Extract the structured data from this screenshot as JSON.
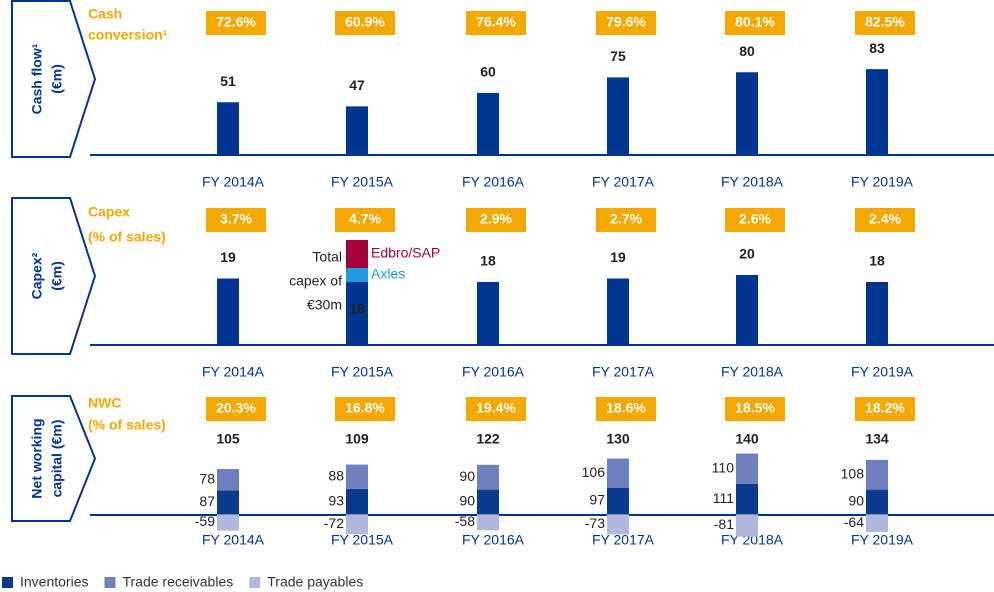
{
  "chart_data": [
    {
      "type": "bar",
      "side_label": [
        "Cash flow¹",
        "(€m)"
      ],
      "ratio_title": [
        "Cash",
        "conversion¹"
      ],
      "ratio_values": [
        72.6,
        60.9,
        76.4,
        79.6,
        80.1,
        82.5
      ],
      "ratio_labels": [
        "72.6%",
        "60.9%",
        "76.4%",
        "79.6%",
        "80.1%",
        "82.5%"
      ],
      "categories": [
        "FY 2014A",
        "FY 2015A",
        "FY 2016A",
        "FY 2017A",
        "FY 2018A",
        "FY 2019A"
      ],
      "values": [
        51,
        47,
        60,
        75,
        80,
        83
      ],
      "color": "#003591",
      "ylim": [
        0,
        145
      ]
    },
    {
      "type": "bar",
      "side_label": [
        "Capex²",
        "(€m)"
      ],
      "ratio_title": [
        "Capex",
        "(% of sales)"
      ],
      "ratio_values": [
        3.7,
        4.7,
        2.9,
        2.7,
        2.6,
        2.4
      ],
      "ratio_labels": [
        "3.7%",
        "4.7%",
        "2.9%",
        "2.7%",
        "2.6%",
        "2.4%"
      ],
      "categories": [
        "FY 2014A",
        "FY 2015A",
        "FY 2016A",
        "FY 2017A",
        "FY 2018A",
        "FY 2019A"
      ],
      "values": [
        19,
        18,
        18,
        19,
        20,
        18
      ],
      "color": "#003591",
      "ylim": [
        0,
        40
      ],
      "stack_series": [
        {
          "name": "Axles",
          "color": "#1e9be0",
          "values": [
            null,
            4,
            null,
            null,
            null,
            null
          ]
        },
        {
          "name": "Edbro/SAP",
          "color": "#a3003c",
          "values": [
            null,
            8,
            null,
            null,
            null,
            null
          ]
        }
      ],
      "annotation": [
        "Total",
        "capex of",
        "€30m"
      ]
    },
    {
      "type": "stacked_bar",
      "side_label": [
        "Net working",
        "capital (€m)"
      ],
      "ratio_title": [
        "NWC",
        "(% of sales)"
      ],
      "ratio_values": [
        20.3,
        16.8,
        19.4,
        18.6,
        18.5,
        18.2
      ],
      "ratio_labels": [
        "20.3%",
        "16.8%",
        "19.4%",
        "18.6%",
        "18.5%",
        "18.2%"
      ],
      "categories": [
        "FY 2014A",
        "FY 2015A",
        "FY 2016A",
        "FY 2017A",
        "FY 2018A",
        "FY 2019A"
      ],
      "totals": [
        105,
        109,
        122,
        130,
        140,
        134
      ],
      "ylim": [
        -75,
        423
      ],
      "series": [
        {
          "name": "Inventories",
          "color": "#0a3a8c",
          "values": [
            87,
            93,
            90,
            97,
            111,
            90
          ]
        },
        {
          "name": "Trade receivables",
          "color": "#6f7fbf",
          "values": [
            78,
            88,
            90,
            106,
            110,
            108
          ]
        },
        {
          "name": "Trade payables",
          "color": "#b0b8e0",
          "values": [
            -59,
            -72,
            -58,
            -73,
            -81,
            -64
          ]
        }
      ]
    }
  ]
}
